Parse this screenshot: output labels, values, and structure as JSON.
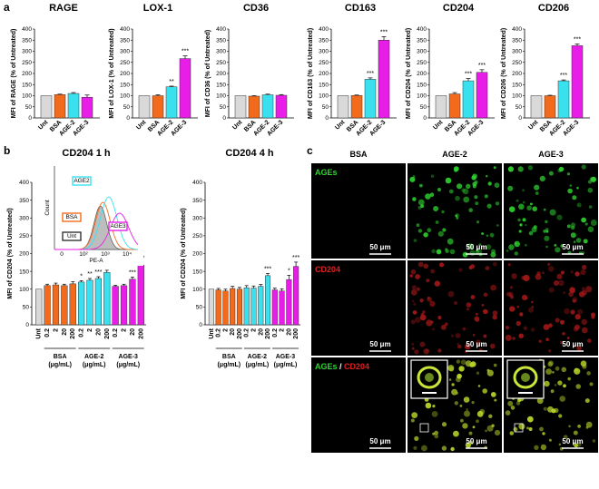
{
  "panel_letters": {
    "a": "a",
    "b": "b",
    "c": "c"
  },
  "colors": {
    "Unt": "#d9d9d9",
    "BSA": "#f26b1d",
    "AGE-2": "#39e1ef",
    "AGE-3": "#e81ee8",
    "green": "#2bd82b",
    "red": "#e02020"
  },
  "chart_data": [
    {
      "type": "bar",
      "title": "RAGE",
      "ylabel": "MFI of RAGE (% of Untreated)",
      "ylim": [
        0,
        400
      ],
      "yticks": [
        "0",
        "50",
        "100",
        "150",
        "200",
        "250",
        "300",
        "350",
        "400"
      ],
      "categories": [
        "Unt",
        "BSA",
        "AGE-2",
        "AGE-3"
      ],
      "values": [
        100,
        105,
        110,
        93
      ],
      "errors": [
        0,
        2,
        4,
        10
      ],
      "stars": [
        "",
        "",
        "",
        ""
      ]
    },
    {
      "type": "bar",
      "title": "LOX-1",
      "ylabel": "MFI of LOX-1 (% of Untreated)",
      "ylim": [
        0,
        400
      ],
      "yticks": [
        "0",
        "50",
        "100",
        "150",
        "200",
        "250",
        "300",
        "350",
        "400"
      ],
      "categories": [
        "Unt",
        "BSA",
        "AGE-2",
        "AGE-3"
      ],
      "values": [
        100,
        100,
        140,
        267
      ],
      "errors": [
        0,
        4,
        3,
        12
      ],
      "stars": [
        "",
        "",
        "**",
        "***"
      ]
    },
    {
      "type": "bar",
      "title": "CD36",
      "ylabel": "MFI of CD36 (% of Untreated)",
      "ylim": [
        0,
        400
      ],
      "yticks": [
        "0",
        "50",
        "100",
        "150",
        "200",
        "250",
        "300",
        "350",
        "400"
      ],
      "categories": [
        "Unt",
        "BSA",
        "AGE-2",
        "AGE-3"
      ],
      "values": [
        100,
        98,
        104,
        102
      ],
      "errors": [
        0,
        2,
        3,
        3
      ],
      "stars": [
        "",
        "",
        "",
        ""
      ]
    },
    {
      "type": "bar",
      "title": "CD163",
      "ylabel": "MFI of CD163 (% of Untreated)",
      "ylim": [
        0,
        400
      ],
      "yticks": [
        "0",
        "50",
        "100",
        "150",
        "200",
        "250",
        "300",
        "350",
        "400"
      ],
      "categories": [
        "Unt",
        "BSA",
        "AGE-2",
        "AGE-3"
      ],
      "values": [
        100,
        101,
        174,
        350
      ],
      "errors": [
        0,
        2,
        6,
        16
      ],
      "stars": [
        "",
        "",
        "***",
        "***"
      ]
    },
    {
      "type": "bar",
      "title": "CD204",
      "ylabel": "MFI of CD204 (% of Untreated)",
      "ylim": [
        0,
        400
      ],
      "yticks": [
        "0",
        "50",
        "100",
        "150",
        "200",
        "250",
        "300",
        "350",
        "400"
      ],
      "categories": [
        "Unt",
        "BSA",
        "AGE-2",
        "AGE-3"
      ],
      "values": [
        100,
        108,
        167,
        205
      ],
      "errors": [
        0,
        6,
        10,
        12
      ],
      "stars": [
        "",
        "",
        "***",
        "***"
      ]
    },
    {
      "type": "bar",
      "title": "CD206",
      "ylabel": "MFI of CD206 (% of Untreated)",
      "ylim": [
        0,
        400
      ],
      "yticks": [
        "0",
        "50",
        "100",
        "150",
        "200",
        "250",
        "300",
        "350",
        "400"
      ],
      "categories": [
        "Unt",
        "BSA",
        "AGE-2",
        "AGE-3"
      ],
      "values": [
        100,
        100,
        167,
        325
      ],
      "errors": [
        0,
        2,
        4,
        8
      ],
      "stars": [
        "",
        "",
        "***",
        "***"
      ]
    },
    {
      "type": "bar",
      "title": "CD204  1 h",
      "ylabel": "MFI of CD204 (% of Untreated)",
      "ylim": [
        0,
        400
      ],
      "yticks": [
        "0",
        "50",
        "100",
        "150",
        "200",
        "250",
        "300",
        "350",
        "400"
      ],
      "tick_labels": [
        "Unt",
        "0.2",
        "2",
        "20",
        "200",
        "0.2",
        "2",
        "20",
        "200",
        "0.2",
        "2",
        "20",
        "200"
      ],
      "groups": [
        {
          "name": "BSA",
          "unit": "(μg/mL)"
        },
        {
          "name": "AGE-2",
          "unit": "(μg/mL)"
        },
        {
          "name": "AGE-3",
          "unit": "(μg/mL)"
        }
      ],
      "series_colors": [
        "Unt",
        "BSA",
        "BSA",
        "BSA",
        "BSA",
        "AGE-2",
        "AGE-2",
        "AGE-2",
        "AGE-2",
        "AGE-3",
        "AGE-3",
        "AGE-3",
        "AGE-3"
      ],
      "values": [
        100,
        110,
        112,
        110,
        115,
        120,
        125,
        130,
        147,
        108,
        110,
        128,
        168
      ],
      "errors": [
        0,
        4,
        5,
        4,
        6,
        4,
        5,
        5,
        6,
        3,
        4,
        6,
        6
      ],
      "stars": [
        "",
        "",
        "",
        "",
        "",
        "*",
        "**",
        "***",
        "***",
        "",
        "",
        "***",
        "***"
      ],
      "inset": {
        "xlabel": "PE-A",
        "ylabel": "Count",
        "xticks": [
          "0",
          "10²",
          "10³",
          "10⁴"
        ],
        "legend": [
          "AGE2",
          "BSA",
          "Unt",
          "AGE3"
        ]
      }
    },
    {
      "type": "bar",
      "title": "CD204  4 h",
      "ylabel": "MFI of CD204 (% of Untreated)",
      "ylim": [
        0,
        400
      ],
      "yticks": [
        "0",
        "50",
        "100",
        "150",
        "200",
        "250",
        "300",
        "350",
        "400"
      ],
      "tick_labels": [
        "Unt",
        "0.2",
        "2",
        "20",
        "200",
        "0.2",
        "2",
        "20",
        "200",
        "0.2",
        "2",
        "20",
        "200"
      ],
      "groups": [
        {
          "name": "BSA",
          "unit": "(μg/mL)"
        },
        {
          "name": "AGE-2",
          "unit": "(μg/mL)"
        },
        {
          "name": "AGE-3",
          "unit": "(μg/mL)"
        }
      ],
      "series_colors": [
        "Unt",
        "BSA",
        "BSA",
        "BSA",
        "BSA",
        "AGE-2",
        "AGE-2",
        "AGE-2",
        "AGE-2",
        "AGE-3",
        "AGE-3",
        "AGE-3",
        "AGE-3"
      ],
      "values": [
        100,
        98,
        95,
        102,
        100,
        104,
        103,
        108,
        138,
        98,
        95,
        127,
        164
      ],
      "errors": [
        0,
        4,
        5,
        6,
        5,
        6,
        6,
        5,
        6,
        5,
        6,
        12,
        12
      ],
      "stars": [
        "",
        "",
        "",
        "",
        "",
        "",
        "",
        "",
        "***",
        "",
        "",
        "*",
        "***"
      ]
    }
  ],
  "micrographs": {
    "columns": [
      "BSA",
      "AGE-2",
      "AGE-3"
    ],
    "rows": [
      {
        "label": "AGEs",
        "label_parts": [
          "AGEs"
        ],
        "color": "green"
      },
      {
        "label": "CD204",
        "label_parts": [
          "CD204"
        ],
        "color": "red"
      },
      {
        "label": "AGEs / CD204",
        "label_parts": [
          "AGEs",
          " / ",
          "CD204"
        ],
        "color": "merge"
      }
    ],
    "scalebar": "50 μm"
  }
}
